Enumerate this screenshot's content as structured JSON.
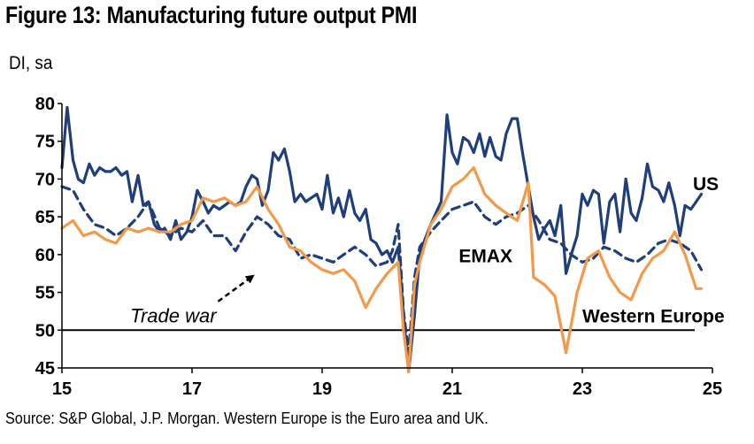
{
  "header": {
    "title": "Figure 13: Manufacturing future output PMI",
    "units": "DI, sa"
  },
  "footer": {
    "source": "Source: S&P Global, J.P. Morgan. Western Europe is the Euro area and UK."
  },
  "colors": {
    "us": "#1f3f7a",
    "emax": "#1f3f7a",
    "western_europe": "#f2994a",
    "reference_line": "#000000"
  },
  "chart_data": {
    "type": "line",
    "title": "Figure 13: Manufacturing future output PMI",
    "ylabel": "DI, sa",
    "xlim": [
      2015.0,
      2025.0
    ],
    "ylim": [
      45,
      80
    ],
    "x_ticks": [
      2015,
      2017,
      2019,
      2021,
      2023,
      2025
    ],
    "x_tick_labels": [
      "15",
      "17",
      "19",
      "21",
      "23",
      "25"
    ],
    "y_ticks": [
      45,
      50,
      55,
      60,
      65,
      70,
      75,
      80
    ],
    "y_tick_labels": [
      "45",
      "50",
      "55",
      "60",
      "65",
      "70",
      "75",
      "80"
    ],
    "grid": false,
    "reference_line": {
      "y": 50
    },
    "series": [
      {
        "name": "US",
        "style": "solid",
        "color": "#1f3f7a",
        "points": [
          [
            2015.0,
            71.5
          ],
          [
            2015.08,
            79.5
          ],
          [
            2015.17,
            72.5
          ],
          [
            2015.25,
            70.0
          ],
          [
            2015.33,
            69.5
          ],
          [
            2015.42,
            72.0
          ],
          [
            2015.5,
            70.5
          ],
          [
            2015.58,
            71.5
          ],
          [
            2015.67,
            71.0
          ],
          [
            2015.75,
            71.0
          ],
          [
            2015.83,
            71.5
          ],
          [
            2015.92,
            70.5
          ],
          [
            2016.0,
            71.0
          ],
          [
            2016.08,
            67.0
          ],
          [
            2016.17,
            70.5
          ],
          [
            2016.25,
            66.5
          ],
          [
            2016.33,
            67.0
          ],
          [
            2016.42,
            64.0
          ],
          [
            2016.5,
            63.0
          ],
          [
            2016.58,
            63.5
          ],
          [
            2016.67,
            62.0
          ],
          [
            2016.75,
            64.5
          ],
          [
            2016.83,
            62.0
          ],
          [
            2016.92,
            63.0
          ],
          [
            2017.0,
            65.0
          ],
          [
            2017.08,
            68.5
          ],
          [
            2017.17,
            67.0
          ],
          [
            2017.25,
            65.5
          ],
          [
            2017.33,
            66.5
          ],
          [
            2017.42,
            66.0
          ],
          [
            2017.5,
            66.5
          ],
          [
            2017.58,
            67.0
          ],
          [
            2017.67,
            66.5
          ],
          [
            2017.75,
            67.0
          ],
          [
            2017.83,
            69.0
          ],
          [
            2017.92,
            70.5
          ],
          [
            2018.0,
            70.0
          ],
          [
            2018.08,
            66.5
          ],
          [
            2018.17,
            68.5
          ],
          [
            2018.25,
            73.5
          ],
          [
            2018.33,
            72.5
          ],
          [
            2018.42,
            74.0
          ],
          [
            2018.5,
            71.0
          ],
          [
            2018.58,
            67.0
          ],
          [
            2018.67,
            68.0
          ],
          [
            2018.75,
            67.0
          ],
          [
            2018.83,
            67.5
          ],
          [
            2018.92,
            68.0
          ],
          [
            2019.0,
            66.0
          ],
          [
            2019.08,
            70.5
          ],
          [
            2019.17,
            65.5
          ],
          [
            2019.25,
            67.5
          ],
          [
            2019.33,
            65.0
          ],
          [
            2019.42,
            68.5
          ],
          [
            2019.5,
            65.5
          ],
          [
            2019.58,
            64.5
          ],
          [
            2019.67,
            66.0
          ],
          [
            2019.75,
            62.0
          ],
          [
            2019.83,
            61.5
          ],
          [
            2019.92,
            60.0
          ],
          [
            2020.0,
            60.5
          ],
          [
            2020.08,
            59.0
          ],
          [
            2020.17,
            61.0
          ],
          [
            2020.25,
            52.0
          ],
          [
            2020.33,
            44.5
          ],
          [
            2020.42,
            52.0
          ],
          [
            2020.5,
            60.0
          ],
          [
            2020.58,
            62.0
          ],
          [
            2020.67,
            64.0
          ],
          [
            2020.75,
            65.5
          ],
          [
            2020.83,
            67.0
          ],
          [
            2020.92,
            78.5
          ],
          [
            2021.0,
            73.5
          ],
          [
            2021.08,
            72.0
          ],
          [
            2021.17,
            75.5
          ],
          [
            2021.25,
            75.0
          ],
          [
            2021.33,
            73.5
          ],
          [
            2021.42,
            76.0
          ],
          [
            2021.5,
            73.0
          ],
          [
            2021.58,
            75.5
          ],
          [
            2021.67,
            73.0
          ],
          [
            2021.75,
            72.5
          ],
          [
            2021.83,
            76.0
          ],
          [
            2021.92,
            78.0
          ],
          [
            2022.0,
            78.0
          ],
          [
            2022.08,
            73.5
          ],
          [
            2022.17,
            69.0
          ],
          [
            2022.25,
            65.0
          ],
          [
            2022.33,
            62.0
          ],
          [
            2022.42,
            63.5
          ],
          [
            2022.5,
            64.5
          ],
          [
            2022.58,
            62.5
          ],
          [
            2022.67,
            66.5
          ],
          [
            2022.75,
            57.5
          ],
          [
            2022.83,
            60.0
          ],
          [
            2022.92,
            62.5
          ],
          [
            2023.0,
            68.0
          ],
          [
            2023.08,
            66.5
          ],
          [
            2023.17,
            68.5
          ],
          [
            2023.25,
            68.0
          ],
          [
            2023.33,
            61.5
          ],
          [
            2023.42,
            67.0
          ],
          [
            2023.5,
            68.0
          ],
          [
            2023.58,
            63.0
          ],
          [
            2023.67,
            70.0
          ],
          [
            2023.75,
            65.5
          ],
          [
            2023.83,
            64.5
          ],
          [
            2023.92,
            67.5
          ],
          [
            2024.0,
            72.0
          ],
          [
            2024.08,
            69.0
          ],
          [
            2024.17,
            68.5
          ],
          [
            2024.25,
            67.0
          ],
          [
            2024.33,
            69.5
          ],
          [
            2024.42,
            66.5
          ],
          [
            2024.5,
            62.5
          ],
          [
            2024.58,
            66.5
          ],
          [
            2024.67,
            66.0
          ],
          [
            2024.75,
            67.0
          ],
          [
            2024.83,
            68.0
          ]
        ]
      },
      {
        "name": "EMAX",
        "style": "dashed",
        "color": "#1f3f7a",
        "points": [
          [
            2015.0,
            69.0
          ],
          [
            2015.17,
            68.5
          ],
          [
            2015.33,
            66.0
          ],
          [
            2015.5,
            64.0
          ],
          [
            2015.67,
            63.5
          ],
          [
            2015.83,
            62.5
          ],
          [
            2016.0,
            63.5
          ],
          [
            2016.17,
            65.0
          ],
          [
            2016.33,
            67.0
          ],
          [
            2016.5,
            63.5
          ],
          [
            2016.67,
            62.5
          ],
          [
            2016.83,
            63.5
          ],
          [
            2017.0,
            63.0
          ],
          [
            2017.17,
            64.5
          ],
          [
            2017.33,
            62.5
          ],
          [
            2017.5,
            62.5
          ],
          [
            2017.67,
            60.5
          ],
          [
            2017.83,
            63.0
          ],
          [
            2018.0,
            65.0
          ],
          [
            2018.17,
            64.0
          ],
          [
            2018.33,
            62.5
          ],
          [
            2018.5,
            62.0
          ],
          [
            2018.67,
            59.5
          ],
          [
            2018.83,
            60.0
          ],
          [
            2019.0,
            59.5
          ],
          [
            2019.17,
            59.0
          ],
          [
            2019.33,
            60.0
          ],
          [
            2019.5,
            61.0
          ],
          [
            2019.67,
            60.0
          ],
          [
            2019.83,
            58.5
          ],
          [
            2020.0,
            59.0
          ],
          [
            2020.08,
            60.5
          ],
          [
            2020.17,
            64.0
          ],
          [
            2020.25,
            52.5
          ],
          [
            2020.33,
            47.0
          ],
          [
            2020.42,
            57.0
          ],
          [
            2020.5,
            61.0
          ],
          [
            2020.67,
            63.0
          ],
          [
            2020.83,
            64.5
          ],
          [
            2021.0,
            66.0
          ],
          [
            2021.17,
            66.5
          ],
          [
            2021.33,
            67.0
          ],
          [
            2021.5,
            65.0
          ],
          [
            2021.67,
            64.0
          ],
          [
            2021.83,
            65.0
          ],
          [
            2022.0,
            65.5
          ],
          [
            2022.17,
            66.5
          ],
          [
            2022.33,
            64.5
          ],
          [
            2022.5,
            62.0
          ],
          [
            2022.67,
            61.5
          ],
          [
            2022.83,
            60.0
          ],
          [
            2023.0,
            59.0
          ],
          [
            2023.17,
            59.5
          ],
          [
            2023.33,
            61.0
          ],
          [
            2023.5,
            60.5
          ],
          [
            2023.67,
            59.5
          ],
          [
            2023.83,
            59.0
          ],
          [
            2024.0,
            60.0
          ],
          [
            2024.17,
            61.5
          ],
          [
            2024.33,
            62.0
          ],
          [
            2024.5,
            61.5
          ],
          [
            2024.67,
            60.5
          ],
          [
            2024.83,
            58.0
          ]
        ]
      },
      {
        "name": "Western Europe",
        "style": "solid",
        "color": "#f2994a",
        "points": [
          [
            2015.0,
            63.5
          ],
          [
            2015.17,
            64.5
          ],
          [
            2015.33,
            62.5
          ],
          [
            2015.5,
            63.0
          ],
          [
            2015.67,
            62.0
          ],
          [
            2015.83,
            61.5
          ],
          [
            2016.0,
            63.5
          ],
          [
            2016.17,
            63.0
          ],
          [
            2016.33,
            63.5
          ],
          [
            2016.5,
            63.0
          ],
          [
            2016.67,
            63.0
          ],
          [
            2016.83,
            64.0
          ],
          [
            2017.0,
            64.5
          ],
          [
            2017.17,
            67.5
          ],
          [
            2017.33,
            67.0
          ],
          [
            2017.5,
            67.5
          ],
          [
            2017.67,
            66.5
          ],
          [
            2017.83,
            67.0
          ],
          [
            2018.0,
            69.0
          ],
          [
            2018.17,
            66.0
          ],
          [
            2018.33,
            64.0
          ],
          [
            2018.5,
            61.0
          ],
          [
            2018.67,
            60.5
          ],
          [
            2018.83,
            59.0
          ],
          [
            2019.0,
            58.0
          ],
          [
            2019.17,
            57.5
          ],
          [
            2019.33,
            58.0
          ],
          [
            2019.5,
            56.5
          ],
          [
            2019.67,
            53.0
          ],
          [
            2019.83,
            55.5
          ],
          [
            2020.0,
            57.5
          ],
          [
            2020.17,
            59.0
          ],
          [
            2020.25,
            50.0
          ],
          [
            2020.33,
            44.5
          ],
          [
            2020.42,
            56.0
          ],
          [
            2020.5,
            59.0
          ],
          [
            2020.67,
            64.0
          ],
          [
            2020.83,
            66.0
          ],
          [
            2021.0,
            69.0
          ],
          [
            2021.17,
            70.0
          ],
          [
            2021.33,
            71.5
          ],
          [
            2021.5,
            68.0
          ],
          [
            2021.67,
            66.5
          ],
          [
            2021.83,
            65.5
          ],
          [
            2022.0,
            64.5
          ],
          [
            2022.17,
            69.5
          ],
          [
            2022.25,
            57.0
          ],
          [
            2022.42,
            56.0
          ],
          [
            2022.58,
            54.5
          ],
          [
            2022.75,
            47.0
          ],
          [
            2022.92,
            55.0
          ],
          [
            2023.08,
            59.5
          ],
          [
            2023.25,
            60.5
          ],
          [
            2023.42,
            57.0
          ],
          [
            2023.58,
            55.0
          ],
          [
            2023.75,
            54.0
          ],
          [
            2023.92,
            57.5
          ],
          [
            2024.08,
            59.5
          ],
          [
            2024.25,
            60.5
          ],
          [
            2024.42,
            63.0
          ],
          [
            2024.58,
            60.0
          ],
          [
            2024.75,
            55.5
          ],
          [
            2024.83,
            55.5
          ]
        ]
      }
    ],
    "annotations": [
      {
        "text": "US",
        "x": 2024.7,
        "y": 68.5
      },
      {
        "text": "EMAX",
        "x": 2021.1,
        "y": 59.0
      },
      {
        "text": "Western Europe",
        "x": 2023.0,
        "y": 51.0
      },
      {
        "text": "Trade war",
        "x": 2016.05,
        "y": 51.0,
        "arrow_to": [
          2018.0,
          58.0
        ]
      }
    ]
  }
}
